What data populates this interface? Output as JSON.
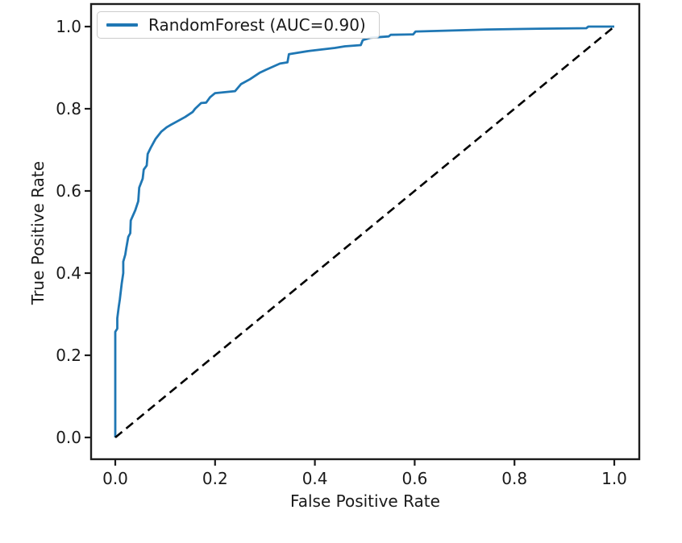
{
  "chart_data": {
    "type": "line",
    "title": "",
    "xlabel": "False Positive Rate",
    "ylabel": "True Positive Rate",
    "xlim": [
      -0.05,
      1.05
    ],
    "ylim": [
      -0.05,
      1.05
    ],
    "grid": false,
    "legend_position": "upper-left",
    "x_ticks": {
      "values": [
        0.0,
        0.2,
        0.4,
        0.6,
        0.8,
        1.0
      ],
      "labels": [
        "0.0",
        "0.2",
        "0.4",
        "0.6",
        "0.8",
        "1.0"
      ]
    },
    "y_ticks": {
      "values": [
        0.0,
        0.2,
        0.4,
        0.6,
        0.8,
        1.0
      ],
      "labels": [
        "0.0",
        "0.2",
        "0.4",
        "0.6",
        "0.8",
        "1.0"
      ]
    },
    "colors": {
      "roc_line": "#1f77b4",
      "chance_line": "#000000",
      "spine": "#1c1c1c",
      "text": "#1a1a1a"
    },
    "series": [
      {
        "name": "RandomForest (AUC=0.90)",
        "kind": "roc-curve",
        "color": "#1f77b4",
        "line_style": "solid",
        "line_width": 2.8,
        "in_legend": true,
        "points": [
          [
            0.0,
            0.0
          ],
          [
            0.0,
            0.257
          ],
          [
            0.004,
            0.265
          ],
          [
            0.004,
            0.29
          ],
          [
            0.007,
            0.318
          ],
          [
            0.009,
            0.335
          ],
          [
            0.01,
            0.345
          ],
          [
            0.013,
            0.375
          ],
          [
            0.016,
            0.4
          ],
          [
            0.016,
            0.428
          ],
          [
            0.02,
            0.445
          ],
          [
            0.022,
            0.46
          ],
          [
            0.026,
            0.488
          ],
          [
            0.03,
            0.497
          ],
          [
            0.031,
            0.528
          ],
          [
            0.04,
            0.553
          ],
          [
            0.046,
            0.575
          ],
          [
            0.048,
            0.608
          ],
          [
            0.055,
            0.63
          ],
          [
            0.057,
            0.652
          ],
          [
            0.063,
            0.662
          ],
          [
            0.065,
            0.69
          ],
          [
            0.071,
            0.705
          ],
          [
            0.076,
            0.716
          ],
          [
            0.081,
            0.727
          ],
          [
            0.092,
            0.744
          ],
          [
            0.103,
            0.755
          ],
          [
            0.11,
            0.76
          ],
          [
            0.125,
            0.77
          ],
          [
            0.14,
            0.78
          ],
          [
            0.155,
            0.792
          ],
          [
            0.16,
            0.8
          ],
          [
            0.172,
            0.814
          ],
          [
            0.182,
            0.815
          ],
          [
            0.19,
            0.828
          ],
          [
            0.2,
            0.838
          ],
          [
            0.24,
            0.843
          ],
          [
            0.252,
            0.86
          ],
          [
            0.27,
            0.872
          ],
          [
            0.29,
            0.888
          ],
          [
            0.302,
            0.895
          ],
          [
            0.33,
            0.91
          ],
          [
            0.345,
            0.913
          ],
          [
            0.348,
            0.933
          ],
          [
            0.39,
            0.941
          ],
          [
            0.44,
            0.948
          ],
          [
            0.46,
            0.952
          ],
          [
            0.492,
            0.955
          ],
          [
            0.496,
            0.967
          ],
          [
            0.512,
            0.973
          ],
          [
            0.548,
            0.976
          ],
          [
            0.552,
            0.98
          ],
          [
            0.597,
            0.981
          ],
          [
            0.602,
            0.988
          ],
          [
            0.66,
            0.99
          ],
          [
            0.745,
            0.993
          ],
          [
            0.85,
            0.995
          ],
          [
            0.944,
            0.996
          ],
          [
            0.948,
            1.0
          ],
          [
            1.0,
            1.0
          ]
        ]
      },
      {
        "name": "chance-diagonal",
        "kind": "reference-line",
        "color": "#000000",
        "line_style": "dashed",
        "line_width": 2.6,
        "in_legend": false,
        "points": [
          [
            0.0,
            0.0
          ],
          [
            1.0,
            1.0
          ]
        ]
      }
    ]
  }
}
